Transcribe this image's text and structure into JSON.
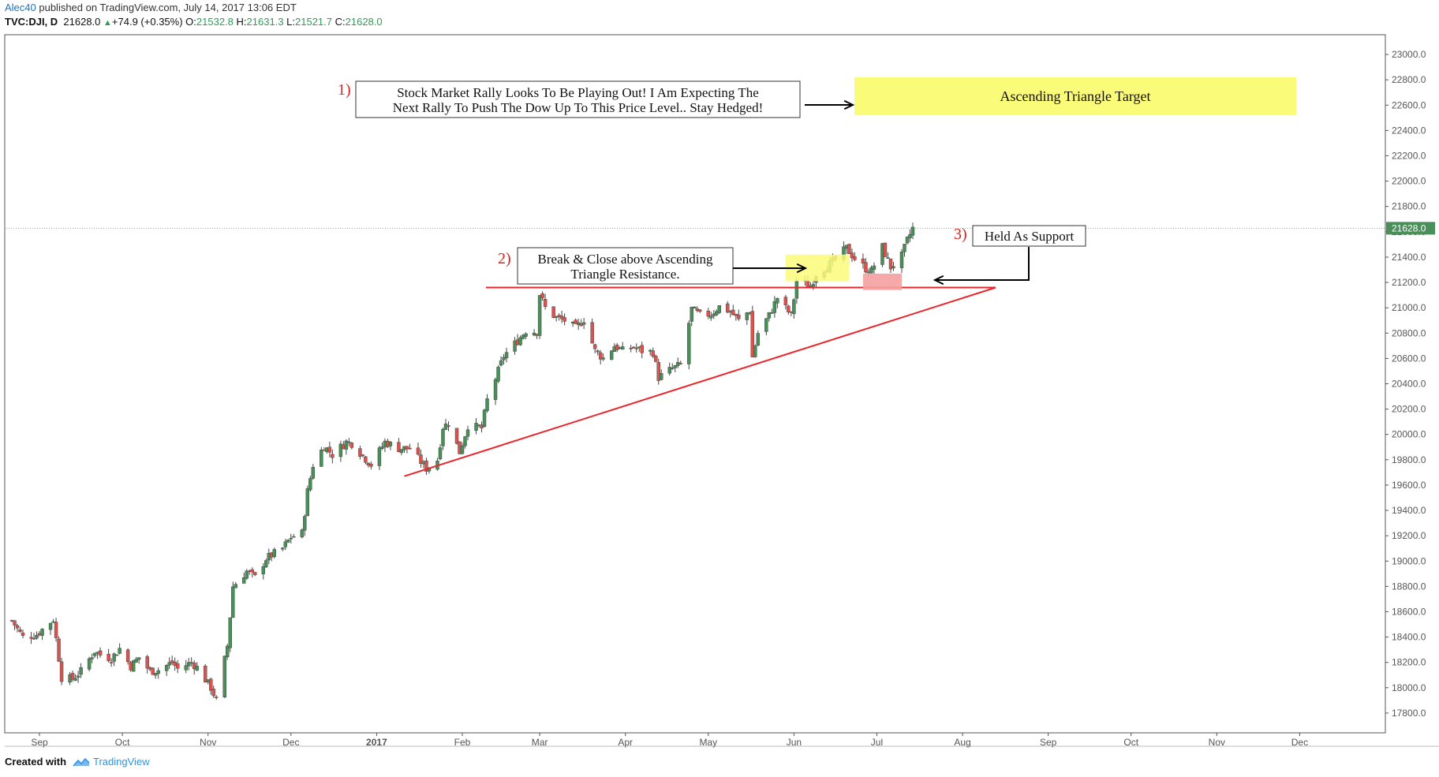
{
  "header": {
    "author": "Alec40",
    "published": " published on TradingView.com, July 14, 2017 13:06 EDT",
    "symbol": "TVC:DJI, D",
    "last": "21628.0",
    "change": "+74.9 (+0.35%)",
    "o_label": "O:",
    "o": "21532.8",
    "h_label": "H:",
    "h": "21631.3",
    "l_label": "L:",
    "l": "21521.7",
    "c_label": "C:",
    "c": "21628.0"
  },
  "footer": {
    "created": "Created with",
    "brand": "TradingView"
  },
  "chart_data": {
    "type": "candlestick",
    "symbol": "TVC:DJI",
    "interval": "D",
    "y_ticks": [
      "17800.0",
      "18000.0",
      "18200.0",
      "18400.0",
      "18600.0",
      "18800.0",
      "19000.0",
      "19200.0",
      "19400.0",
      "19600.0",
      "19800.0",
      "20000.0",
      "20200.0",
      "20400.0",
      "20600.0",
      "20800.0",
      "21000.0",
      "21200.0",
      "21400.0",
      "21600.0",
      "21800.0",
      "22000.0",
      "22200.0",
      "22400.0",
      "22600.0",
      "22800.0",
      "23000.0"
    ],
    "ylim": [
      17650,
      23150
    ],
    "x_labels": [
      {
        "label": "Sep",
        "date": "2016-09-01",
        "bold": false
      },
      {
        "label": "Oct",
        "date": "2016-10-01",
        "bold": false
      },
      {
        "label": "Nov",
        "date": "2016-11-01",
        "bold": false
      },
      {
        "label": "Dec",
        "date": "2016-12-01",
        "bold": false
      },
      {
        "label": "2017",
        "date": "2017-01-01",
        "bold": true
      },
      {
        "label": "Feb",
        "date": "2017-02-01",
        "bold": false
      },
      {
        "label": "Mar",
        "date": "2017-03-01",
        "bold": false
      },
      {
        "label": "Apr",
        "date": "2017-04-01",
        "bold": false
      },
      {
        "label": "May",
        "date": "2017-05-01",
        "bold": false
      },
      {
        "label": "Jun",
        "date": "2017-06-01",
        "bold": false
      },
      {
        "label": "Jul",
        "date": "2017-07-01",
        "bold": false
      },
      {
        "label": "Aug",
        "date": "2017-08-01",
        "bold": false
      },
      {
        "label": "Sep",
        "date": "2017-09-01",
        "bold": false
      },
      {
        "label": "Oct",
        "date": "2017-10-01",
        "bold": false
      },
      {
        "label": "Nov",
        "date": "2017-11-01",
        "bold": false
      },
      {
        "label": "Dec",
        "date": "2017-12-01",
        "bold": false
      }
    ],
    "x_range": [
      "2016-08-20",
      "2017-12-20"
    ],
    "last_price": 21628.0,
    "last_price_label": "21628.0",
    "series": [
      {
        "name": "DJI",
        "date_ranges_note_unused": null,
        "points": [
          [
            "2016-08-22",
            18530
          ],
          [
            "2016-08-26",
            18400
          ],
          [
            "2016-08-31",
            18420
          ],
          [
            "2016-09-06",
            18540
          ],
          [
            "2016-09-09",
            18080
          ],
          [
            "2016-09-13",
            18070
          ],
          [
            "2016-09-16",
            18130
          ],
          [
            "2016-09-21",
            18290
          ],
          [
            "2016-09-23",
            18260
          ],
          [
            "2016-09-27",
            18230
          ],
          [
            "2016-09-30",
            18310
          ],
          [
            "2016-10-04",
            18170
          ],
          [
            "2016-10-07",
            18240
          ],
          [
            "2016-10-11",
            18130
          ],
          [
            "2016-10-14",
            18140
          ],
          [
            "2016-10-19",
            18200
          ],
          [
            "2016-10-21",
            18150
          ],
          [
            "2016-10-26",
            18200
          ],
          [
            "2016-10-28",
            18160
          ],
          [
            "2016-11-02",
            18000
          ],
          [
            "2016-11-04",
            17900
          ],
          [
            "2016-11-08",
            18330
          ],
          [
            "2016-11-10",
            18800
          ],
          [
            "2016-11-15",
            18920
          ],
          [
            "2016-11-18",
            18870
          ],
          [
            "2016-11-22",
            19020
          ],
          [
            "2016-11-28",
            19100
          ],
          [
            "2016-12-01",
            19190
          ],
          [
            "2016-12-05",
            19220
          ],
          [
            "2016-12-07",
            19550
          ],
          [
            "2016-12-09",
            19760
          ],
          [
            "2016-12-13",
            19910
          ],
          [
            "2016-12-16",
            19840
          ],
          [
            "2016-12-21",
            19940
          ],
          [
            "2016-12-23",
            19930
          ],
          [
            "2016-12-30",
            19760
          ],
          [
            "2017-01-04",
            19940
          ],
          [
            "2017-01-09",
            19890
          ],
          [
            "2017-01-13",
            19890
          ],
          [
            "2017-01-19",
            19730
          ],
          [
            "2017-01-23",
            19800
          ],
          [
            "2017-01-25",
            20060
          ],
          [
            "2017-01-27",
            20090
          ],
          [
            "2017-01-31",
            19860
          ],
          [
            "2017-02-03",
            20070
          ],
          [
            "2017-02-08",
            20050
          ],
          [
            "2017-02-10",
            20270
          ],
          [
            "2017-02-14",
            20500
          ],
          [
            "2017-02-16",
            20620
          ],
          [
            "2017-02-21",
            20740
          ],
          [
            "2017-02-24",
            20820
          ],
          [
            "2017-02-28",
            20810
          ],
          [
            "2017-03-01",
            21110
          ],
          [
            "2017-03-03",
            21000
          ],
          [
            "2017-03-07",
            20920
          ],
          [
            "2017-03-10",
            20900
          ],
          [
            "2017-03-14",
            20840
          ],
          [
            "2017-03-17",
            20910
          ],
          [
            "2017-03-21",
            20660
          ],
          [
            "2017-03-24",
            20600
          ],
          [
            "2017-03-28",
            20700
          ],
          [
            "2017-03-31",
            20660
          ],
          [
            "2017-04-04",
            20690
          ],
          [
            "2017-04-07",
            20660
          ],
          [
            "2017-04-11",
            20650
          ],
          [
            "2017-04-13",
            20450
          ],
          [
            "2017-04-18",
            20520
          ],
          [
            "2017-04-21",
            20550
          ],
          [
            "2017-04-25",
            20990
          ],
          [
            "2017-04-28",
            20940
          ],
          [
            "2017-05-02",
            20950
          ],
          [
            "2017-05-05",
            21010
          ],
          [
            "2017-05-09",
            20970
          ],
          [
            "2017-05-12",
            20900
          ],
          [
            "2017-05-16",
            20980
          ],
          [
            "2017-05-17",
            20610
          ],
          [
            "2017-05-19",
            20800
          ],
          [
            "2017-05-23",
            20940
          ],
          [
            "2017-05-26",
            21080
          ],
          [
            "2017-05-31",
            20940
          ],
          [
            "2017-06-02",
            21210
          ],
          [
            "2017-06-07",
            21170
          ],
          [
            "2017-06-09",
            21270
          ],
          [
            "2017-06-13",
            21330
          ],
          [
            "2017-06-16",
            21380
          ],
          [
            "2017-06-20",
            21470
          ],
          [
            "2017-06-23",
            21390
          ],
          [
            "2017-06-27",
            21310
          ],
          [
            "2017-06-29",
            21290
          ],
          [
            "2017-07-03",
            21480
          ],
          [
            "2017-07-06",
            21320
          ],
          [
            "2017-07-10",
            21410
          ],
          [
            "2017-07-12",
            21530
          ],
          [
            "2017-07-14",
            21628
          ]
        ]
      }
    ],
    "annotations": [
      {
        "num": "1)",
        "text1": "Stock Market Rally Looks To Be Playing Out! I Am Expecting The",
        "text2": "Next Rally To Push The Dow Up To This Price Level.. Stay Hedged!"
      },
      {
        "num": "2)",
        "text1": "Break & Close above Ascending",
        "text2": "Triangle Resistance."
      },
      {
        "num": "3)",
        "text1": "Held As Support",
        "text2": ""
      }
    ],
    "target_box_label": "Ascending Triangle Target",
    "target_zone": [
      22520,
      22820
    ],
    "resistance_level": 21160,
    "support_line_start": {
      "date": "2017-01-11",
      "value": 19670
    },
    "support_line_end": {
      "date": "2017-08-13",
      "value": 21160
    },
    "breakout_zone": {
      "from": "2017-05-29",
      "to": "2017-06-21",
      "low": 21210,
      "high": 21420
    },
    "support_zone": {
      "from": "2017-06-26",
      "to": "2017-07-10",
      "low": 21140,
      "high": 21270
    },
    "colors": {
      "up": "#4a8f5a",
      "down": "#d9534f",
      "wick": "#444444",
      "resistance": "#e8262b",
      "target": "#fbfb7a",
      "support_zone": "#f4a0a0",
      "annotation_num": "#d22222",
      "last_price_bg": "#4a8f5a"
    }
  }
}
